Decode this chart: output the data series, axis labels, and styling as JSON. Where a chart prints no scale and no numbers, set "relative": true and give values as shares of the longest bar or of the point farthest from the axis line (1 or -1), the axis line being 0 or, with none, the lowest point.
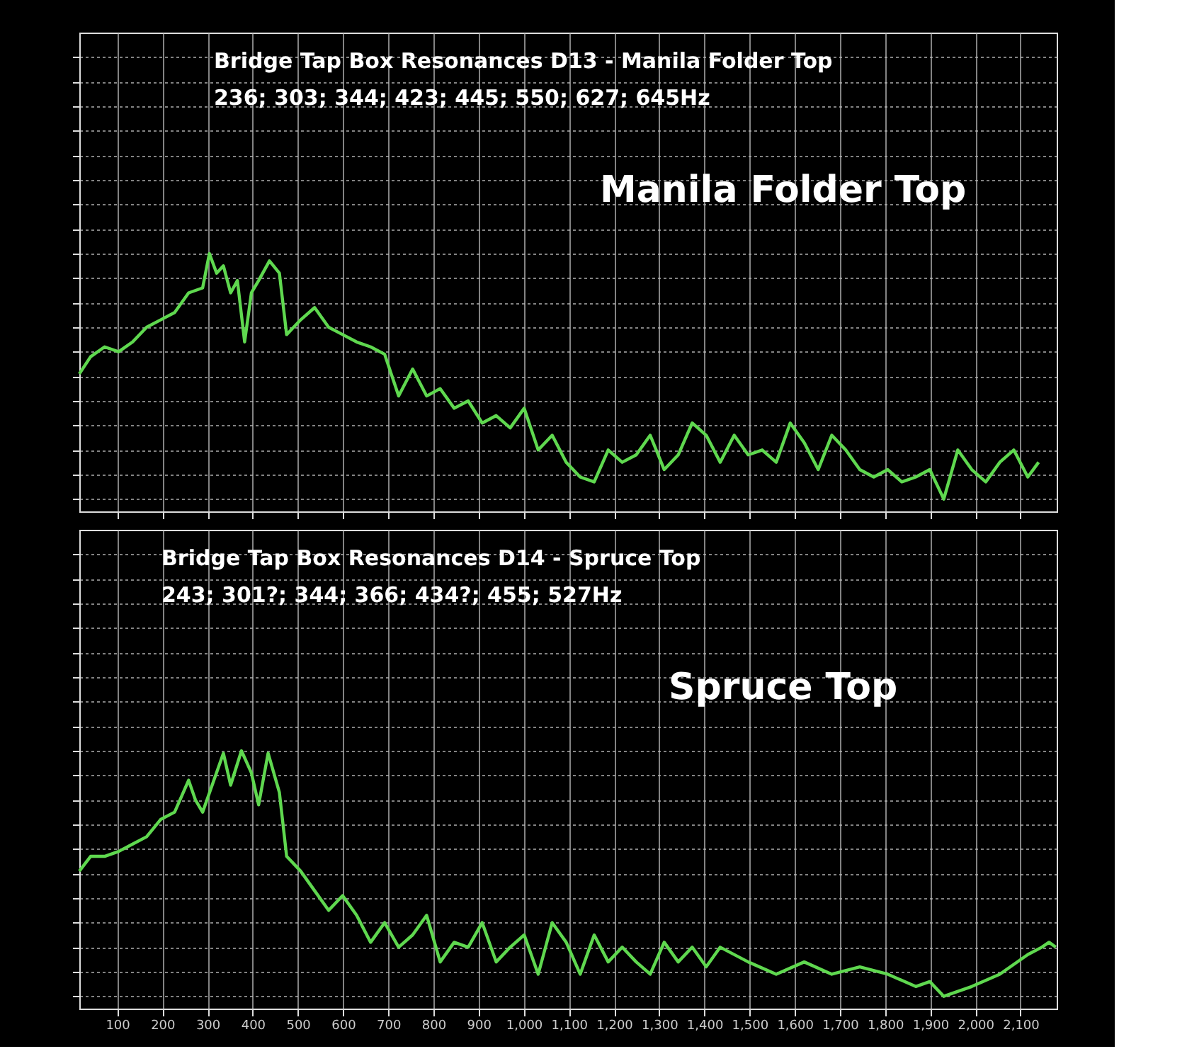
{
  "chart_data": [
    {
      "type": "line",
      "relative": true,
      "tick_labels": false,
      "grid": true,
      "legend": false,
      "line_style": "solid",
      "marker": "none",
      "xlim": [
        16,
        2180
      ],
      "xticks": [
        {
          "value": 100,
          "label": null
        },
        {
          "value": 200,
          "label": null
        },
        {
          "value": 300,
          "label": null
        },
        {
          "value": 400,
          "label": null
        },
        {
          "value": 500,
          "label": null
        },
        {
          "value": 600,
          "label": null
        },
        {
          "value": 700,
          "label": null
        },
        {
          "value": 800,
          "label": null
        },
        {
          "value": 900,
          "label": null
        },
        {
          "value": 1000,
          "label": null
        },
        {
          "value": 1100,
          "label": null
        },
        {
          "value": 1200,
          "label": null
        },
        {
          "value": 1300,
          "label": null
        },
        {
          "value": 1400,
          "label": null
        },
        {
          "value": 1500,
          "label": null
        },
        {
          "value": 1600,
          "label": null
        },
        {
          "value": 1700,
          "label": null
        },
        {
          "value": 1800,
          "label": null
        },
        {
          "value": 1900,
          "label": null
        },
        {
          "value": 2000,
          "label": null
        },
        {
          "value": 2100,
          "label": null
        }
      ],
      "annotations": [
        "Bridge Tap Box Resonances D13 - Manila Folder Top",
        "236; 303; 344; 423; 445; 550; 627; 645Hz"
      ],
      "series": [
        {
          "name": "Manila Folder Top",
          "color": "#5fd84f",
          "x": [
            16,
            41,
            72,
            103,
            134,
            165,
            196,
            227,
            258,
            289,
            304,
            320,
            335,
            351,
            366,
            382,
            397,
            413,
            437,
            459,
            475,
            506,
            537,
            568,
            599,
            630,
            661,
            692,
            723,
            754,
            785,
            815,
            846,
            877,
            908,
            939,
            970,
            1001,
            1032,
            1063,
            1094,
            1125,
            1156,
            1187,
            1218,
            1249,
            1280,
            1311,
            1342,
            1373,
            1404,
            1435,
            1466,
            1497,
            1528,
            1559,
            1590,
            1621,
            1652,
            1682,
            1713,
            1744,
            1775,
            1806,
            1837,
            1868,
            1899,
            1930,
            1961,
            1992,
            2023,
            2054,
            2085,
            2116,
            2140
          ],
          "values": [
            0.51,
            0.58,
            0.62,
            0.6,
            0.64,
            0.7,
            0.73,
            0.76,
            0.84,
            0.86,
            1,
            0.92,
            0.95,
            0.84,
            0.89,
            0.64,
            0.84,
            0.89,
            0.97,
            0.92,
            0.67,
            0.73,
            0.78,
            0.7,
            0.67,
            0.64,
            0.62,
            0.59,
            0.42,
            0.53,
            0.42,
            0.45,
            0.37,
            0.4,
            0.31,
            0.34,
            0.29,
            0.37,
            0.2,
            0.26,
            0.15,
            0.09,
            0.07,
            0.2,
            0.15,
            0.18,
            0.26,
            0.12,
            0.18,
            0.31,
            0.26,
            0.15,
            0.26,
            0.18,
            0.2,
            0.15,
            0.31,
            0.23,
            0.12,
            0.26,
            0.2,
            0.12,
            0.09,
            0.12,
            0.07,
            0.09,
            0.12,
            0,
            0.2,
            0.12,
            0.07,
            0.15,
            0.2,
            0.09,
            0.15
          ]
        }
      ]
    },
    {
      "type": "line",
      "relative": true,
      "tick_labels": "x",
      "grid": true,
      "legend": false,
      "line_style": "solid",
      "marker": "none",
      "xlim": [
        16,
        2180
      ],
      "xticks": [
        100,
        200,
        300,
        400,
        500,
        600,
        700,
        800,
        900,
        {
          "value": 1000,
          "label": "1,000"
        },
        {
          "value": 1100,
          "label": "1,100"
        },
        {
          "value": 1200,
          "label": "1,200"
        },
        {
          "value": 1300,
          "label": "1,300"
        },
        {
          "value": 1400,
          "label": "1,400"
        },
        {
          "value": 1500,
          "label": "1,500"
        },
        {
          "value": 1600,
          "label": "1,600"
        },
        {
          "value": 1700,
          "label": "1,700"
        },
        {
          "value": 1800,
          "label": "1,800"
        },
        {
          "value": 1900,
          "label": "1,900"
        },
        {
          "value": 2000,
          "label": "2,000"
        },
        {
          "value": 2100,
          "label": "2,100"
        }
      ],
      "annotations": [
        "Bridge Tap Box Resonances D14 - Spruce Top",
        "243; 301?; 344; 366; 434?; 455; 527Hz"
      ],
      "series": [
        {
          "name": "Spruce Top",
          "color": "#5fd84f",
          "x": [
            16,
            41,
            72,
            103,
            134,
            165,
            196,
            227,
            258,
            273,
            289,
            314,
            335,
            351,
            375,
            397,
            413,
            434,
            459,
            475,
            506,
            537,
            568,
            599,
            630,
            661,
            692,
            723,
            754,
            785,
            815,
            846,
            877,
            908,
            939,
            970,
            1001,
            1032,
            1063,
            1094,
            1125,
            1156,
            1187,
            1218,
            1249,
            1280,
            1311,
            1342,
            1373,
            1404,
            1435,
            1497,
            1559,
            1621,
            1682,
            1744,
            1806,
            1868,
            1899,
            1930,
            1992,
            2054,
            2116,
            2147,
            2163,
            2178
          ],
          "values": [
            0.51,
            0.57,
            0.57,
            0.59,
            0.62,
            0.65,
            0.72,
            0.75,
            0.88,
            0.8,
            0.75,
            0.88,
            0.99,
            0.86,
            1,
            0.91,
            0.78,
            0.99,
            0.83,
            0.57,
            0.51,
            0.43,
            0.35,
            0.41,
            0.33,
            0.22,
            0.3,
            0.2,
            0.25,
            0.33,
            0.14,
            0.22,
            0.2,
            0.3,
            0.14,
            0.2,
            0.25,
            0.09,
            0.3,
            0.22,
            0.09,
            0.25,
            0.14,
            0.2,
            0.14,
            0.09,
            0.22,
            0.14,
            0.2,
            0.12,
            0.2,
            0.14,
            0.09,
            0.14,
            0.09,
            0.12,
            0.09,
            0.04,
            0.06,
            0,
            0.04,
            0.09,
            0.17,
            0.2,
            0.22,
            0.2
          ]
        }
      ]
    }
  ]
}
